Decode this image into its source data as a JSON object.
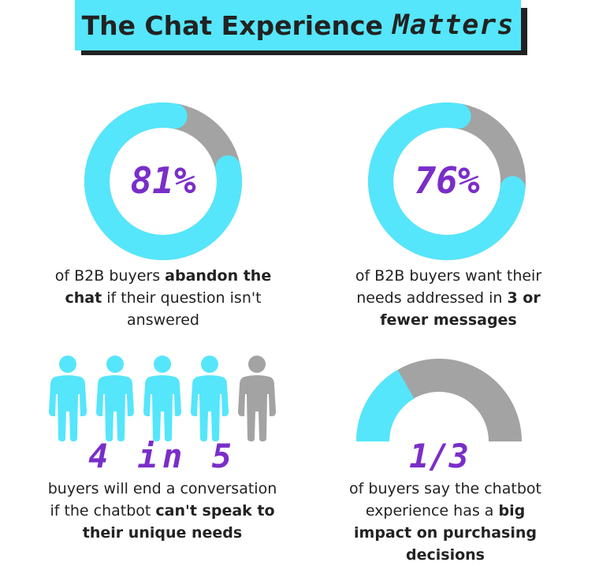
{
  "title": {
    "text": "The Chat Experience",
    "accent": "Matters"
  },
  "colors": {
    "primary": "#55e6fb",
    "secondary": "#a3a3a3",
    "number": "#7a2ec9"
  },
  "chart_data": [
    {
      "type": "pie",
      "variant": "donut",
      "value_label": "81%",
      "slices": [
        {
          "value": 81,
          "color": "#55e6fb"
        },
        {
          "value": 19,
          "color": "#a3a3a3"
        }
      ],
      "caption": {
        "pre": "of B2B buyers ",
        "bold": "abandon the chat",
        "post": " if their question isn't answered"
      }
    },
    {
      "type": "pie",
      "variant": "donut",
      "value_label": "76%",
      "slices": [
        {
          "value": 76,
          "color": "#55e6fb"
        },
        {
          "value": 24,
          "color": "#a3a3a3"
        }
      ],
      "caption": {
        "pre": "of B2B buyers want their needs addressed in ",
        "bold": "3 or fewer messages",
        "post": ""
      }
    },
    {
      "type": "pictograph",
      "value_label": "4 in 5",
      "filled": 4,
      "total": 5,
      "caption": {
        "pre": "buyers will end a conversation if the chatbot ",
        "bold": "can't speak to their unique needs",
        "post": ""
      }
    },
    {
      "type": "pie",
      "variant": "semi-donut",
      "value_label": "1/3",
      "fraction": 0.3333,
      "caption": {
        "pre": "of buyers say the chatbot experience has a ",
        "bold": "big impact on purchasing decisions",
        "post": ""
      }
    }
  ]
}
